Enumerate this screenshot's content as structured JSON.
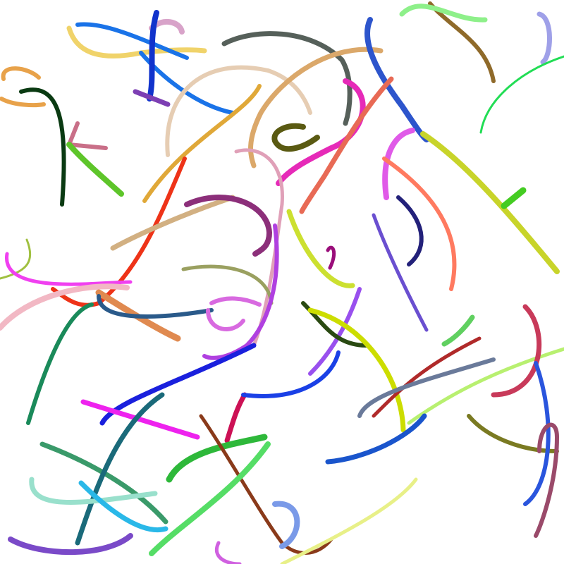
{
  "background": "#ffffff",
  "strokes": [
    {
      "color": "#e8a24a"
    },
    {
      "color": "#0a3a12"
    },
    {
      "color": "#c96f88"
    },
    {
      "color": "#5ec52a"
    },
    {
      "color": "#f0d36a"
    },
    {
      "color": "#1a73e8"
    },
    {
      "color": "#d8a3c9"
    },
    {
      "color": "#1133cc"
    },
    {
      "color": "#7d3fb3"
    },
    {
      "color": "#e6cdb3"
    },
    {
      "color": "#56605a"
    },
    {
      "color": "#dba86a"
    },
    {
      "color": "#2d55cc"
    },
    {
      "color": "#9fa0e8"
    },
    {
      "color": "#8f6a2a"
    },
    {
      "color": "#8ef08a"
    },
    {
      "color": "#22dd55"
    },
    {
      "color": "#e62ab8"
    },
    {
      "color": "#e86a55"
    },
    {
      "color": "#e0a838"
    },
    {
      "color": "#ee3318"
    },
    {
      "color": "#d2b082"
    },
    {
      "color": "#8c2f7a"
    },
    {
      "color": "#e0a0b8"
    },
    {
      "color": "#5a5a12"
    },
    {
      "color": "#e05ae8"
    },
    {
      "color": "#ff7a60"
    },
    {
      "color": "#c8d42a"
    },
    {
      "color": "#44cc22"
    },
    {
      "color": "#23217a"
    },
    {
      "color": "#6a4fd0"
    },
    {
      "color": "#a0c040"
    },
    {
      "color": "#f040f0"
    },
    {
      "color": "#f2b8c4"
    },
    {
      "color": "#e08a50"
    },
    {
      "color": "#2a5a8a"
    },
    {
      "color": "#9aa060"
    },
    {
      "color": "#d86ae0"
    },
    {
      "color": "#b040e0"
    },
    {
      "color": "#1a8a5a"
    },
    {
      "color": "#1a20dd"
    },
    {
      "color": "#ee22ee"
    },
    {
      "color": "#cc1155"
    },
    {
      "color": "#9a0e7a"
    },
    {
      "color": "#9950ee"
    },
    {
      "color": "#cce030"
    },
    {
      "color": "#2a4a12"
    },
    {
      "color": "#ccdd00"
    },
    {
      "color": "#1a40e6"
    },
    {
      "color": "#60d060"
    },
    {
      "color": "#b02a2a"
    },
    {
      "color": "#6a7a9a"
    },
    {
      "color": "#b8f070"
    },
    {
      "color": "#c83a5a"
    },
    {
      "color": "#7a7a22"
    },
    {
      "color": "#2a55dd"
    },
    {
      "color": "#9a4a6a"
    },
    {
      "color": "#3a9a6a"
    },
    {
      "color": "#1a6a7a"
    },
    {
      "color": "#99e0cc"
    },
    {
      "color": "#2ab8e8"
    },
    {
      "color": "#2eb83a"
    },
    {
      "color": "#8a3a1a"
    },
    {
      "color": "#7a9ae8"
    },
    {
      "color": "#1a55cc"
    },
    {
      "color": "#7a4ac8"
    },
    {
      "color": "#e8f088"
    },
    {
      "color": "#55dd66"
    },
    {
      "color": "#d060e0"
    }
  ]
}
